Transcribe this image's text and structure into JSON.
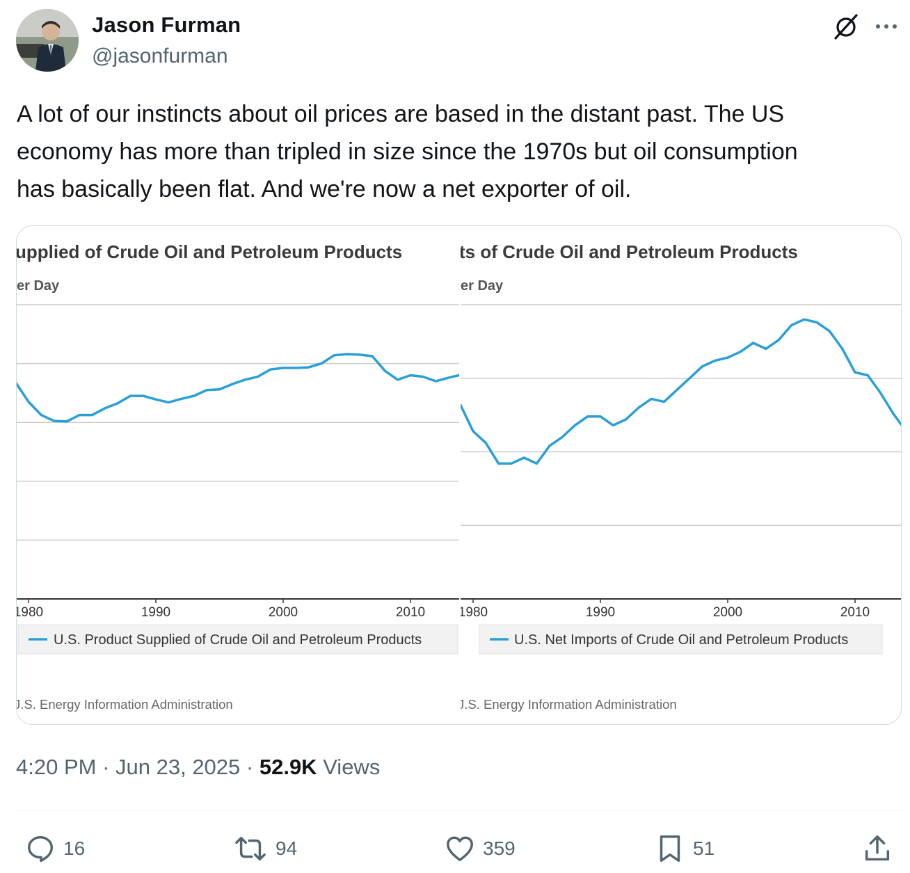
{
  "author": {
    "name": "Jason Furman",
    "handle": "@jasonfurman"
  },
  "tweet": {
    "text": "A lot of our instincts about oil prices are based in the distant past. The US\neconomy has more than tripled in size since the 1970s but oil consumption\nhas basically been flat. And we're now a net exporter of oil."
  },
  "icons": {
    "header": [
      "grok-icon",
      "more-icon"
    ],
    "actions": [
      "reply-icon",
      "retweet-icon",
      "like-icon",
      "bookmark-icon",
      "share-icon"
    ]
  },
  "colors": {
    "series": "#2a9fd6",
    "muted": "#536471",
    "text": "#0f1419"
  },
  "chart_data": [
    {
      "type": "line",
      "title": "upplied of Crude Oil and Petroleum Products",
      "subtitle": "er Day",
      "x_ticks": [
        "1980",
        "1990",
        "2000",
        "2010"
      ],
      "x_range": [
        1980,
        2014
      ],
      "y_range": [
        0,
        1
      ],
      "y_gridlines": [
        0.2,
        0.4,
        0.6,
        0.8,
        1.0
      ],
      "series": [
        {
          "name": "U.S. Product Supplied of Crude Oil and Petroleum Products",
          "x": [
            1979,
            1980,
            1981,
            1982,
            1983,
            1984,
            1985,
            1986,
            1987,
            1988,
            1989,
            1990,
            1991,
            1992,
            1993,
            1994,
            1995,
            1996,
            1997,
            1998,
            1999,
            2000,
            2001,
            2002,
            2003,
            2004,
            2005,
            2006,
            2007,
            2008,
            2009,
            2010,
            2011,
            2012,
            2013,
            2014
          ],
          "values": [
            0.735,
            0.67,
            0.625,
            0.605,
            0.603,
            0.625,
            0.625,
            0.648,
            0.665,
            0.69,
            0.69,
            0.678,
            0.668,
            0.68,
            0.69,
            0.71,
            0.712,
            0.73,
            0.745,
            0.755,
            0.78,
            0.785,
            0.785,
            0.787,
            0.8,
            0.828,
            0.832,
            0.83,
            0.825,
            0.775,
            0.745,
            0.76,
            0.755,
            0.74,
            0.752,
            0.762
          ]
        }
      ],
      "legend": [
        "U.S. Product Supplied of Crude Oil and Petroleum Products"
      ],
      "source": "J.S. Energy Information Administration"
    },
    {
      "type": "line",
      "title": "ts of Crude Oil and Petroleum Products",
      "subtitle": "er Day",
      "x_ticks": [
        "1980",
        "1990",
        "2000",
        "2010"
      ],
      "x_range": [
        1980,
        2014
      ],
      "y_range": [
        0,
        1
      ],
      "y_gridlines": [
        0.25,
        0.5,
        0.75,
        1.0
      ],
      "series": [
        {
          "name": "U.S. Net Imports of Crude Oil and Petroleum Products",
          "x": [
            1979,
            1980,
            1981,
            1982,
            1983,
            1984,
            1985,
            1986,
            1987,
            1988,
            1989,
            1990,
            1991,
            1992,
            1993,
            1994,
            1995,
            1996,
            1997,
            1998,
            1999,
            2000,
            2001,
            2002,
            2003,
            2004,
            2005,
            2006,
            2007,
            2008,
            2009,
            2010,
            2011,
            2012,
            2013,
            2014
          ],
          "values": [
            0.66,
            0.57,
            0.53,
            0.46,
            0.46,
            0.48,
            0.46,
            0.52,
            0.55,
            0.59,
            0.62,
            0.62,
            0.59,
            0.61,
            0.65,
            0.68,
            0.67,
            0.71,
            0.75,
            0.79,
            0.81,
            0.82,
            0.84,
            0.87,
            0.85,
            0.88,
            0.93,
            0.95,
            0.94,
            0.91,
            0.85,
            0.77,
            0.76,
            0.7,
            0.63,
            0.57
          ]
        }
      ],
      "legend": [
        "U.S. Net Imports of Crude Oil and Petroleum Products"
      ],
      "source": "J.S. Energy Information Administration"
    }
  ],
  "meta": {
    "time": "4:20 PM",
    "separator": " · ",
    "date": "Jun 23, 2025",
    "views_count": "52.9K",
    "views_label": " Views"
  },
  "actions": {
    "replies": "16",
    "retweets": "94",
    "likes": "359",
    "bookmarks": "51"
  }
}
